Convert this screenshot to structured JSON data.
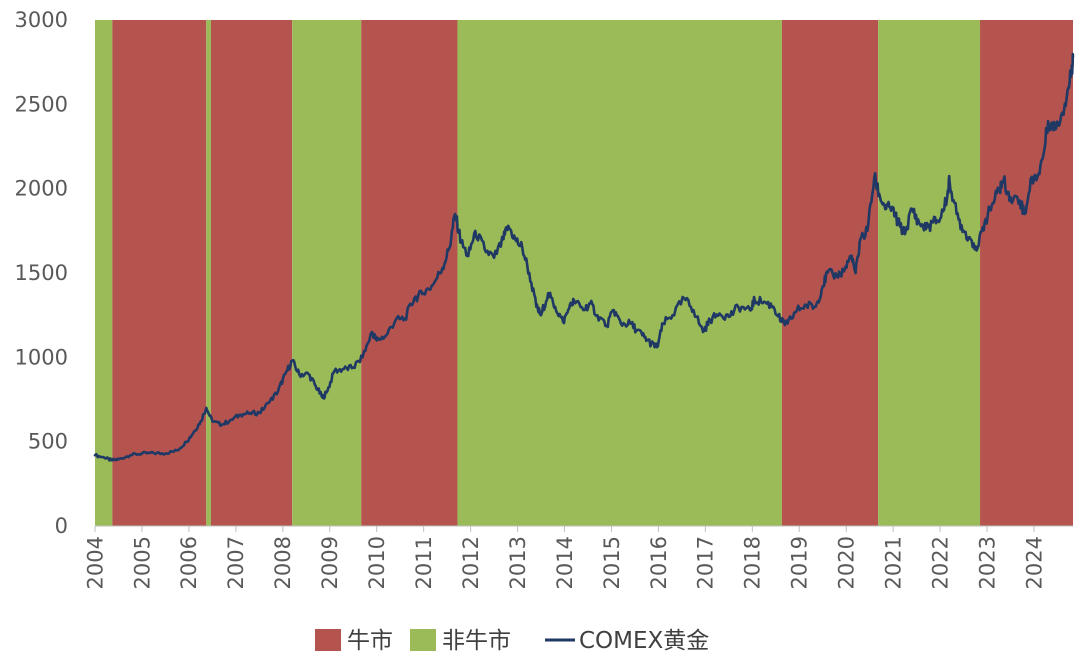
{
  "chart_data": {
    "type": "line",
    "title": "",
    "xlabel": "",
    "ylabel": "",
    "xlim": [
      2004.0,
      2024.83
    ],
    "ylim": [
      0,
      3000
    ],
    "y_ticks": [
      "0",
      "500",
      "1000",
      "1500",
      "2000",
      "2500",
      "3000"
    ],
    "x_ticks": [
      "2004",
      "2005",
      "2006",
      "2007",
      "2008",
      "2009",
      "2010",
      "2011",
      "2012",
      "2013",
      "2014",
      "2015",
      "2016",
      "2017",
      "2018",
      "2019",
      "2020",
      "2021",
      "2022",
      "2023",
      "2024"
    ],
    "grid": false,
    "legend_position": "bottom",
    "legend": [
      {
        "name": "牛市",
        "kind": "bar",
        "color": "#b5544f"
      },
      {
        "name": "非牛市",
        "kind": "bar",
        "color": "#9bbb59"
      },
      {
        "name": "COMEX黄金",
        "kind": "line",
        "color": "#1f3864"
      }
    ],
    "regimes": [
      {
        "label": "非牛市",
        "start": 2004.0,
        "end": 2004.37
      },
      {
        "label": "牛市",
        "start": 2004.37,
        "end": 2006.37
      },
      {
        "label": "非牛市",
        "start": 2006.37,
        "end": 2006.47
      },
      {
        "label": "牛市",
        "start": 2006.47,
        "end": 2008.2
      },
      {
        "label": "非牛市",
        "start": 2008.2,
        "end": 2009.67
      },
      {
        "label": "牛市",
        "start": 2009.67,
        "end": 2011.72
      },
      {
        "label": "非牛市",
        "start": 2011.72,
        "end": 2018.63
      },
      {
        "label": "牛市",
        "start": 2018.63,
        "end": 2020.68
      },
      {
        "label": "非牛市",
        "start": 2020.68,
        "end": 2022.85
      },
      {
        "label": "牛市",
        "start": 2022.85,
        "end": 2024.83
      }
    ],
    "series": [
      {
        "name": "COMEX黄金",
        "color": "#1f3864",
        "points": [
          [
            2004.0,
            420
          ],
          [
            2004.2,
            405
          ],
          [
            2004.35,
            390
          ],
          [
            2004.5,
            395
          ],
          [
            2004.75,
            420
          ],
          [
            2005.0,
            430
          ],
          [
            2005.25,
            432
          ],
          [
            2005.5,
            430
          ],
          [
            2005.75,
            448
          ],
          [
            2005.95,
            500
          ],
          [
            2006.1,
            555
          ],
          [
            2006.25,
            620
          ],
          [
            2006.37,
            700
          ],
          [
            2006.5,
            620
          ],
          [
            2006.7,
            600
          ],
          [
            2006.9,
            630
          ],
          [
            2007.1,
            660
          ],
          [
            2007.3,
            670
          ],
          [
            2007.5,
            670
          ],
          [
            2007.7,
            730
          ],
          [
            2007.9,
            800
          ],
          [
            2008.05,
            900
          ],
          [
            2008.2,
            980
          ],
          [
            2008.35,
            900
          ],
          [
            2008.55,
            900
          ],
          [
            2008.7,
            830
          ],
          [
            2008.85,
            760
          ],
          [
            2008.95,
            800
          ],
          [
            2009.1,
            920
          ],
          [
            2009.3,
            930
          ],
          [
            2009.5,
            940
          ],
          [
            2009.7,
            1000
          ],
          [
            2009.9,
            1150
          ],
          [
            2010.0,
            1100
          ],
          [
            2010.2,
            1130
          ],
          [
            2010.4,
            1220
          ],
          [
            2010.6,
            1230
          ],
          [
            2010.8,
            1350
          ],
          [
            2011.0,
            1380
          ],
          [
            2011.2,
            1430
          ],
          [
            2011.4,
            1530
          ],
          [
            2011.55,
            1650
          ],
          [
            2011.67,
            1850
          ],
          [
            2011.8,
            1680
          ],
          [
            2011.95,
            1600
          ],
          [
            2012.1,
            1750
          ],
          [
            2012.3,
            1640
          ],
          [
            2012.5,
            1590
          ],
          [
            2012.7,
            1700
          ],
          [
            2012.8,
            1780
          ],
          [
            2012.95,
            1700
          ],
          [
            2013.1,
            1650
          ],
          [
            2013.25,
            1500
          ],
          [
            2013.4,
            1300
          ],
          [
            2013.5,
            1250
          ],
          [
            2013.65,
            1380
          ],
          [
            2013.8,
            1300
          ],
          [
            2013.97,
            1210
          ],
          [
            2014.1,
            1290
          ],
          [
            2014.2,
            1340
          ],
          [
            2014.4,
            1280
          ],
          [
            2014.55,
            1320
          ],
          [
            2014.7,
            1250
          ],
          [
            2014.9,
            1190
          ],
          [
            2015.05,
            1280
          ],
          [
            2015.2,
            1200
          ],
          [
            2015.4,
            1200
          ],
          [
            2015.55,
            1160
          ],
          [
            2015.7,
            1120
          ],
          [
            2015.85,
            1080
          ],
          [
            2015.97,
            1060
          ],
          [
            2016.1,
            1200
          ],
          [
            2016.3,
            1250
          ],
          [
            2016.55,
            1350
          ],
          [
            2016.75,
            1280
          ],
          [
            2016.95,
            1150
          ],
          [
            2017.1,
            1220
          ],
          [
            2017.3,
            1260
          ],
          [
            2017.5,
            1240
          ],
          [
            2017.7,
            1300
          ],
          [
            2017.95,
            1280
          ],
          [
            2018.05,
            1340
          ],
          [
            2018.25,
            1330
          ],
          [
            2018.45,
            1300
          ],
          [
            2018.62,
            1210
          ],
          [
            2018.75,
            1200
          ],
          [
            2018.95,
            1280
          ],
          [
            2019.15,
            1310
          ],
          [
            2019.35,
            1300
          ],
          [
            2019.5,
            1420
          ],
          [
            2019.6,
            1500
          ],
          [
            2019.8,
            1480
          ],
          [
            2019.97,
            1520
          ],
          [
            2020.1,
            1600
          ],
          [
            2020.2,
            1500
          ],
          [
            2020.3,
            1700
          ],
          [
            2020.45,
            1750
          ],
          [
            2020.6,
            2070
          ],
          [
            2020.72,
            1950
          ],
          [
            2020.85,
            1880
          ],
          [
            2020.97,
            1890
          ],
          [
            2021.1,
            1800
          ],
          [
            2021.25,
            1730
          ],
          [
            2021.4,
            1880
          ],
          [
            2021.55,
            1800
          ],
          [
            2021.7,
            1760
          ],
          [
            2021.85,
            1800
          ],
          [
            2022.0,
            1820
          ],
          [
            2022.15,
            1950
          ],
          [
            2022.2,
            2050
          ],
          [
            2022.35,
            1850
          ],
          [
            2022.5,
            1750
          ],
          [
            2022.65,
            1700
          ],
          [
            2022.8,
            1650
          ],
          [
            2022.95,
            1800
          ],
          [
            2023.1,
            1900
          ],
          [
            2023.25,
            1990
          ],
          [
            2023.35,
            2050
          ],
          [
            2023.5,
            1950
          ],
          [
            2023.7,
            1930
          ],
          [
            2023.8,
            1850
          ],
          [
            2023.95,
            2070
          ],
          [
            2024.05,
            2050
          ],
          [
            2024.2,
            2200
          ],
          [
            2024.3,
            2400
          ],
          [
            2024.45,
            2350
          ],
          [
            2024.6,
            2450
          ],
          [
            2024.7,
            2550
          ],
          [
            2024.8,
            2700
          ],
          [
            2024.83,
            2780
          ]
        ]
      }
    ]
  }
}
